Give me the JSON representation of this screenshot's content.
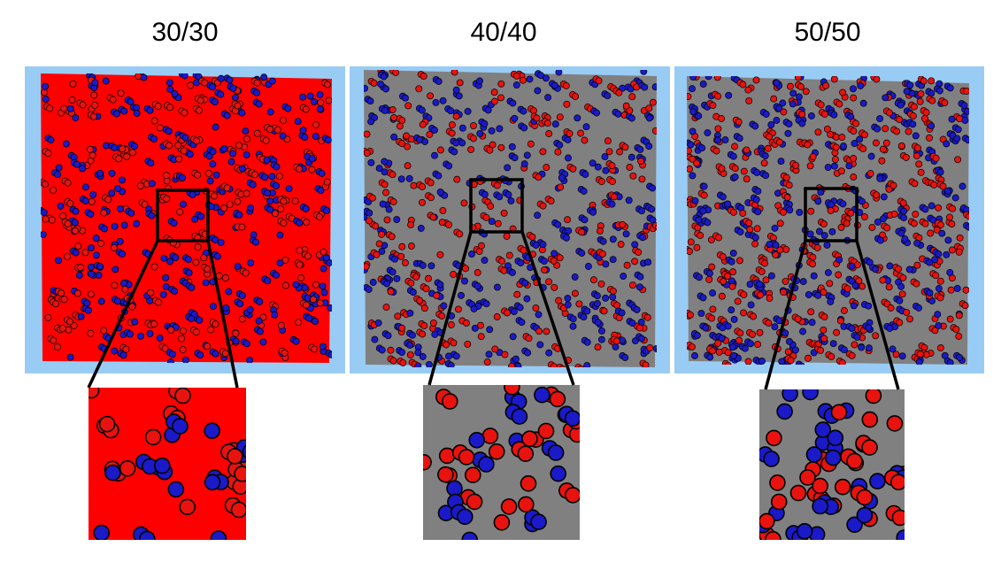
{
  "panels": [
    {
      "label": "30/30"
    },
    {
      "label": "40/40"
    },
    {
      "label": "50/50"
    }
  ]
}
